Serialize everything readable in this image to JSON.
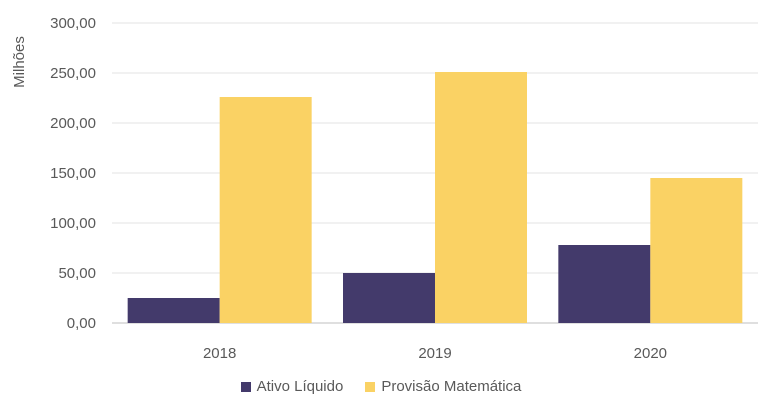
{
  "chart_data": {
    "type": "bar",
    "title": "",
    "xlabel": "",
    "ylabel": "Milhões",
    "categories": [
      "2018",
      "2019",
      "2020"
    ],
    "series": [
      {
        "name": "Ativo Líquido",
        "values": [
          25,
          50,
          78
        ],
        "color": "#433a6b"
      },
      {
        "name": "Provisão Matemática",
        "values": [
          226,
          251,
          145
        ],
        "color": "#fad264"
      }
    ],
    "ylim": [
      0,
      300
    ],
    "yticks": [
      0,
      50,
      100,
      150,
      200,
      250,
      300
    ],
    "ytick_labels": [
      "0,00",
      "50,00",
      "100,00",
      "150,00",
      "200,00",
      "250,00",
      "300,00"
    ],
    "grid": true,
    "legend_position": "bottom"
  }
}
